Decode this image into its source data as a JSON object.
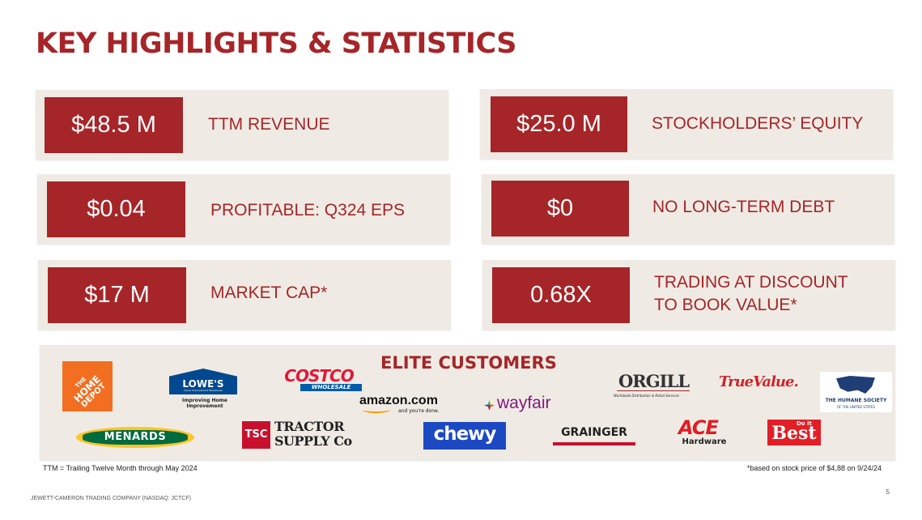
{
  "title": "KEY HIGHLIGHTS & STATISTICS",
  "stats": [
    {
      "value": "$48.5 M",
      "label": "TTM REVENUE"
    },
    {
      "value": "$25.0 M",
      "label": "STOCKHOLDERS’ EQUITY"
    },
    {
      "value": "$0.04",
      "label": "PROFITABLE: Q324 EPS"
    },
    {
      "value": "$0",
      "label": "NO LONG-TERM DEBT"
    },
    {
      "value": "$17 M",
      "label": "MARKET CAP*"
    },
    {
      "value": "0.68X",
      "label_line1": "TRADING AT DISCOUNT",
      "label_line2": "TO BOOK VALUE*"
    }
  ],
  "customers": {
    "heading": "ELITE CUSTOMERS",
    "logos": {
      "home_depot": {
        "line1": "THE",
        "line2": "HOME",
        "line3": "DEPOT"
      },
      "lowes": {
        "name": "LOWE'S",
        "sub": "Home Improvement Warehouse",
        "tagline": "Improving Home Improvement"
      },
      "costco": {
        "name": "COSTCO",
        "sub": "WHOLESALE"
      },
      "amazon": {
        "name": "amazon.com",
        "tagline": "and you're done."
      },
      "wayfair": {
        "name": "wayfair"
      },
      "orgill": {
        "name": "ORGILL",
        "tagline": "Worldwide Distribution & Retail Services"
      },
      "true_value": {
        "name": "TrueValue."
      },
      "humane": {
        "line1": "THE HUMANE SOCIETY",
        "line2": "OF THE UNITED STATES"
      },
      "menards": {
        "name": "MENARDS"
      },
      "tsc": {
        "badge": "TSC",
        "line1": "TRACTOR",
        "line2": "SUPPLY Co"
      },
      "chewy": {
        "name": "chewy"
      },
      "grainger": {
        "name": "GRAINGER"
      },
      "ace": {
        "name": "ACE",
        "sub": "Hardware"
      },
      "do_it_best": {
        "small": "Do it",
        "name": "Best"
      }
    }
  },
  "footnotes": {
    "ttm": "TTM = Trailing Twelve Month through May 2024",
    "stock": "*based on stock price of $4,88 on 9/24/24"
  },
  "footer": {
    "company": "JEWETT-CAMERON TRADING COMPANY (NASDAQ: JCTCF)",
    "page": "5"
  },
  "colors": {
    "brand_red": "#a62528",
    "panel_bg": "#efebe4"
  }
}
